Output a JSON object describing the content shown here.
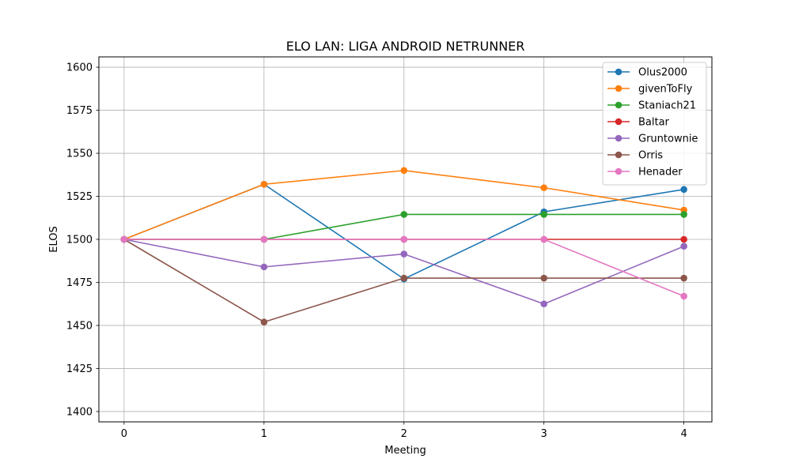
{
  "chart_data": {
    "type": "line",
    "title": "ELO LAN: LIGA ANDROID NETRUNNER",
    "xlabel": "Meeting",
    "ylabel": "ELOS",
    "x": [
      0,
      1,
      2,
      3,
      4
    ],
    "xticks": [
      "0",
      "1",
      "2",
      "3",
      "4"
    ],
    "yticks": [
      "1400",
      "1425",
      "1450",
      "1475",
      "1500",
      "1525",
      "1550",
      "1575",
      "1600"
    ],
    "xlim": [
      -0.18,
      4.2
    ],
    "ylim": [
      1394,
      1606
    ],
    "grid": true,
    "legend_position": "top-right",
    "series": [
      {
        "name": "Olus2000",
        "color": "#1f77b4",
        "values": [
          1500,
          1532,
          1477,
          1516,
          1529
        ]
      },
      {
        "name": "givenToFly",
        "color": "#ff7f0e",
        "values": [
          1500,
          1532,
          1540,
          1530,
          1517
        ]
      },
      {
        "name": "Staniach21",
        "color": "#2ca02c",
        "values": [
          1500,
          1500,
          1514.5,
          1514.5,
          1514.5
        ]
      },
      {
        "name": "Baltar",
        "color": "#d62728",
        "values": [
          1500,
          1500,
          1500,
          1500,
          1500
        ]
      },
      {
        "name": "Gruntownie",
        "color": "#9467bd",
        "values": [
          1500,
          1484,
          1491.5,
          1462.5,
          1496
        ]
      },
      {
        "name": "Orris",
        "color": "#8c564b",
        "values": [
          1500,
          1452,
          1477.5,
          1477.5,
          1477.5
        ]
      },
      {
        "name": "Henader",
        "color": "#e377c2",
        "values": [
          1500,
          1500,
          1500,
          1500,
          1467
        ]
      }
    ]
  }
}
